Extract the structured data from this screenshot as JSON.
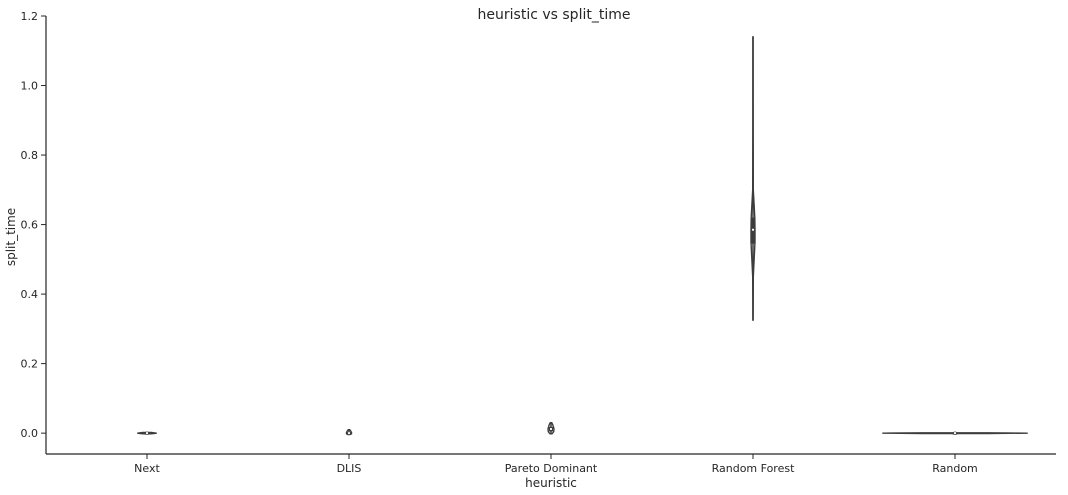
{
  "chart_data": {
    "type": "violin",
    "title": "heuristic vs split_time",
    "xlabel": "heuristic",
    "ylabel": "split_time",
    "categories": [
      "Next",
      "DLIS",
      "Pareto Dominant",
      "Random Forest",
      "Random"
    ],
    "ylim": [
      -0.06,
      1.2
    ],
    "yticks": [
      "0.0",
      "0.2",
      "0.4",
      "0.6",
      "0.8",
      "1.0",
      "1.2"
    ],
    "grid": false,
    "series": [
      {
        "category": "Next",
        "min": 0.0,
        "q1": 0.0,
        "median": 0.0,
        "q3": 0.0,
        "max": 0.0,
        "profile": [
          [
            -0.002,
            0.45
          ],
          [
            0.0,
            1.0
          ],
          [
            0.002,
            0.45
          ]
        ]
      },
      {
        "category": "DLIS",
        "min": -0.004,
        "q1": -0.002,
        "median": 0.0,
        "q3": 0.002,
        "max": 0.01,
        "profile": [
          [
            -0.004,
            0.4
          ],
          [
            -0.002,
            1.0
          ],
          [
            0.002,
            1.0
          ],
          [
            0.006,
            0.7
          ],
          [
            0.01,
            0.3
          ]
        ]
      },
      {
        "category": "Pareto Dominant",
        "min": -0.002,
        "q1": 0.005,
        "median": 0.012,
        "q3": 0.018,
        "max": 0.03,
        "profile": [
          [
            -0.002,
            0.35
          ],
          [
            0.004,
            0.9
          ],
          [
            0.012,
            1.0
          ],
          [
            0.02,
            0.75
          ],
          [
            0.026,
            0.5
          ],
          [
            0.03,
            0.25
          ]
        ]
      },
      {
        "category": "Random Forest",
        "min": 0.325,
        "q1": 0.545,
        "median": 0.585,
        "q3": 0.62,
        "max": 1.14,
        "profile": [
          [
            0.325,
            0.05
          ],
          [
            0.45,
            0.15
          ],
          [
            0.55,
            1.0
          ],
          [
            0.585,
            1.0
          ],
          [
            0.62,
            0.9
          ],
          [
            0.7,
            0.15
          ],
          [
            0.9,
            0.07
          ],
          [
            1.14,
            0.05
          ]
        ]
      },
      {
        "category": "Random",
        "min": 0.0,
        "q1": 0.0,
        "median": 0.0,
        "q3": 0.0,
        "max": 0.0,
        "profile": [
          [
            -0.001,
            0.45
          ],
          [
            0.0,
            1.0
          ],
          [
            0.001,
            0.45
          ]
        ]
      }
    ]
  },
  "colors": {
    "axis": "#262626",
    "violin_stroke": "#3d3d3d",
    "box": "#3d3d3d",
    "median_dot": "#ffffff"
  }
}
